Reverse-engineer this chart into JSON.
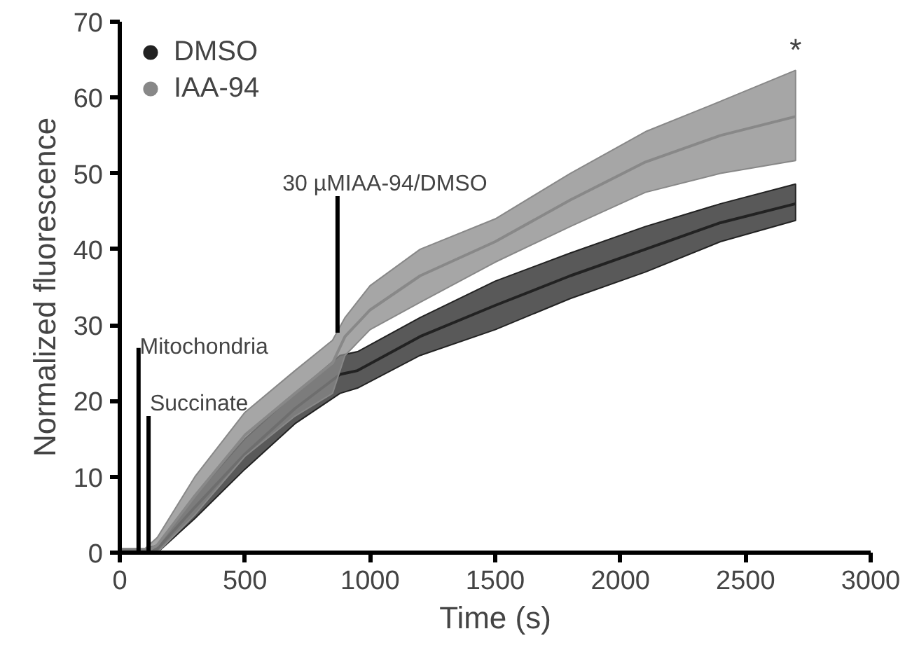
{
  "chart_data": {
    "type": "line",
    "xlabel": "Time (s)",
    "ylabel": "Normalized fluorescence",
    "xlim": [
      0,
      3000
    ],
    "xticks": [
      0,
      500,
      1000,
      1500,
      2000,
      2500,
      3000
    ],
    "ylim": [
      0,
      70
    ],
    "yticks": [
      0,
      10,
      20,
      30,
      40,
      50,
      60,
      70
    ],
    "grid": false,
    "legend": "top left",
    "marker": "none",
    "series": [
      {
        "name": "DMSO",
        "color": "#222222",
        "x": [
          0,
          100,
          150,
          300,
          500,
          700,
          880,
          950,
          1200,
          1500,
          1800,
          2100,
          2400,
          2700
        ],
        "values": [
          0,
          0,
          0.5,
          6,
          13,
          19,
          23.5,
          24,
          28.5,
          32.6,
          36.5,
          40,
          43.5,
          46
        ],
        "lower": [
          0,
          0,
          0,
          4.5,
          11,
          17,
          21,
          21.7,
          26,
          29.4,
          33.5,
          37,
          41,
          43.8
        ],
        "upper": [
          0.5,
          0.5,
          1,
          7.5,
          15,
          21,
          26,
          26.5,
          31,
          35.8,
          39.5,
          43,
          46,
          48.6
        ]
      },
      {
        "name": "IAA-94",
        "color": "#888888",
        "x": [
          0,
          100,
          150,
          300,
          500,
          700,
          850,
          900,
          1000,
          1200,
          1500,
          1800,
          2100,
          2400,
          2700
        ],
        "values": [
          0,
          0,
          1,
          7.5,
          15.5,
          21,
          25,
          28.5,
          32,
          36.5,
          41,
          46.5,
          51.5,
          55,
          57.5
        ],
        "lower": [
          0,
          0,
          0,
          5,
          12.7,
          18,
          21,
          26,
          29.4,
          33,
          38.3,
          43,
          47.5,
          50,
          51.7
        ],
        "upper": [
          0.5,
          0.5,
          2,
          10,
          18.5,
          24,
          28,
          31,
          35.2,
          40,
          44,
          50,
          55.5,
          59.5,
          63.6
        ]
      }
    ],
    "annotations": [
      {
        "text": "Mitochondria",
        "x": 75,
        "y": 0
      },
      {
        "text": "Succinate",
        "x": 115,
        "y": 0
      },
      {
        "text": "30 µMIAA-94/DMSO",
        "x": 870,
        "y": 29
      },
      "*"
    ]
  }
}
